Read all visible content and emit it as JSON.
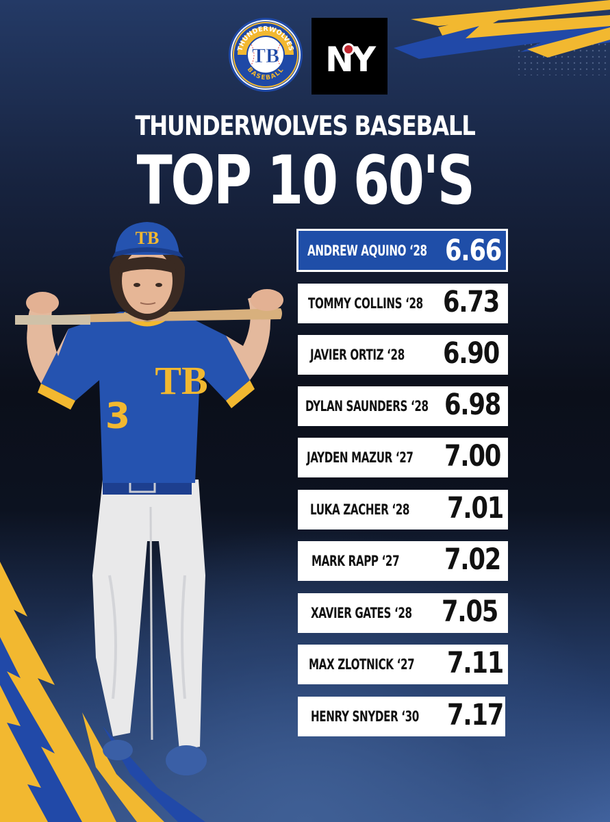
{
  "header": {
    "subtitle": "THUNDERWOLVES BASEBALL",
    "title": "TOP 10 60'S"
  },
  "logos": {
    "team": {
      "icon": "thunderwolves-tb-logo",
      "ring_top": "THUNDERWOLVES",
      "ring_bottom": "BASEBALL",
      "monogram": "TB"
    },
    "partner": {
      "icon": "ny-logo",
      "text": "NY"
    }
  },
  "player_photo": {
    "icon": "baseball-player-photo",
    "jersey_number": "3",
    "cap_monogram": "TB"
  },
  "leaderboard": [
    {
      "name": "ANDREW AQUINO ‘28",
      "time": "6.66",
      "highlight": true
    },
    {
      "name": "TOMMY COLLINS ‘28",
      "time": "6.73",
      "highlight": false
    },
    {
      "name": "JAVIER ORTIZ ‘28",
      "time": "6.90",
      "highlight": false
    },
    {
      "name": "DYLAN SAUNDERS ‘28",
      "time": "6.98",
      "highlight": false
    },
    {
      "name": "JAYDEN MAZUR ‘27",
      "time": "7.00",
      "highlight": false
    },
    {
      "name": "LUKA ZACHER ‘28",
      "time": "7.01",
      "highlight": false
    },
    {
      "name": "MARK RAPP ‘27",
      "time": "7.02",
      "highlight": false
    },
    {
      "name": "XAVIER GATES ‘28",
      "time": "7.05",
      "highlight": false
    },
    {
      "name": "MAX ZLOTNICK ‘27",
      "time": "7.11",
      "highlight": false
    },
    {
      "name": "HENRY SNYDER ‘30",
      "time": "7.17",
      "highlight": false
    }
  ],
  "colors": {
    "royal_blue": "#1f4ea8",
    "gold": "#f2b830",
    "navy": "#0b0f1a"
  }
}
